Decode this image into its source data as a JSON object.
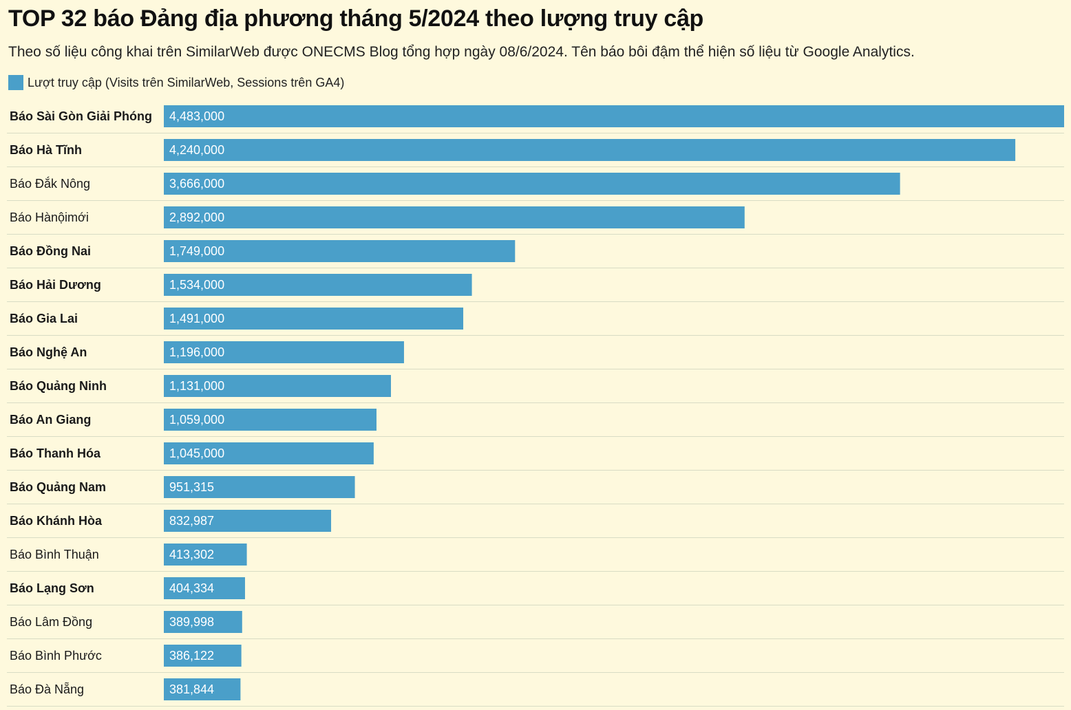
{
  "header": {
    "title": "TOP 32 báo Đảng địa phương tháng 5/2024 theo lượng truy cập",
    "subtitle": "Theo số liệu công khai trên SimilarWeb được ONECMS Blog tổng hợp ngày 08/6/2024. Tên báo bôi đậm thể hiện số liệu từ Google Analytics."
  },
  "legend": {
    "label": "Lượt truy cập (Visits trên SimilarWeb, Sessions trên GA4)"
  },
  "colors": {
    "bar": "#4a9fc9",
    "background": "#fef9dd",
    "divider": "#d8dcc4"
  },
  "chart_data": {
    "type": "bar",
    "orientation": "horizontal",
    "title": "TOP 32 báo Đảng địa phương tháng 5/2024 theo lượng truy cập",
    "series_name": "Lượt truy cập (Visits trên SimilarWeb, Sessions trên GA4)",
    "xlim": [
      0,
      4483000
    ],
    "categories": [
      "Báo Sài Gòn Giải Phóng",
      "Báo Hà Tĩnh",
      "Báo Đắk Nông",
      "Báo Hànộimới",
      "Báo Đồng Nai",
      "Báo Hải Dương",
      "Báo Gia Lai",
      "Báo Nghệ An",
      "Báo Quảng Ninh",
      "Báo An Giang",
      "Báo Thanh Hóa",
      "Báo Quảng Nam",
      "Báo Khánh Hòa",
      "Báo Bình Thuận",
      "Báo Lạng Sơn",
      "Báo Lâm Đồng",
      "Báo Bình Phước",
      "Báo Đà Nẵng"
    ],
    "values": [
      4483000,
      4240000,
      3666000,
      2892000,
      1749000,
      1534000,
      1491000,
      1196000,
      1131000,
      1059000,
      1045000,
      951315,
      832987,
      413302,
      404334,
      389998,
      386122,
      381844
    ],
    "value_labels": [
      "4,483,000",
      "4,240,000",
      "3,666,000",
      "2,892,000",
      "1,749,000",
      "1,534,000",
      "1,491,000",
      "1,196,000",
      "1,131,000",
      "1,059,000",
      "1,045,000",
      "951,315",
      "832,987",
      "413,302",
      "404,334",
      "389,998",
      "386,122",
      "381,844"
    ],
    "google_analytics": [
      true,
      true,
      false,
      false,
      true,
      true,
      true,
      true,
      true,
      true,
      true,
      true,
      true,
      false,
      true,
      false,
      false,
      false
    ]
  }
}
